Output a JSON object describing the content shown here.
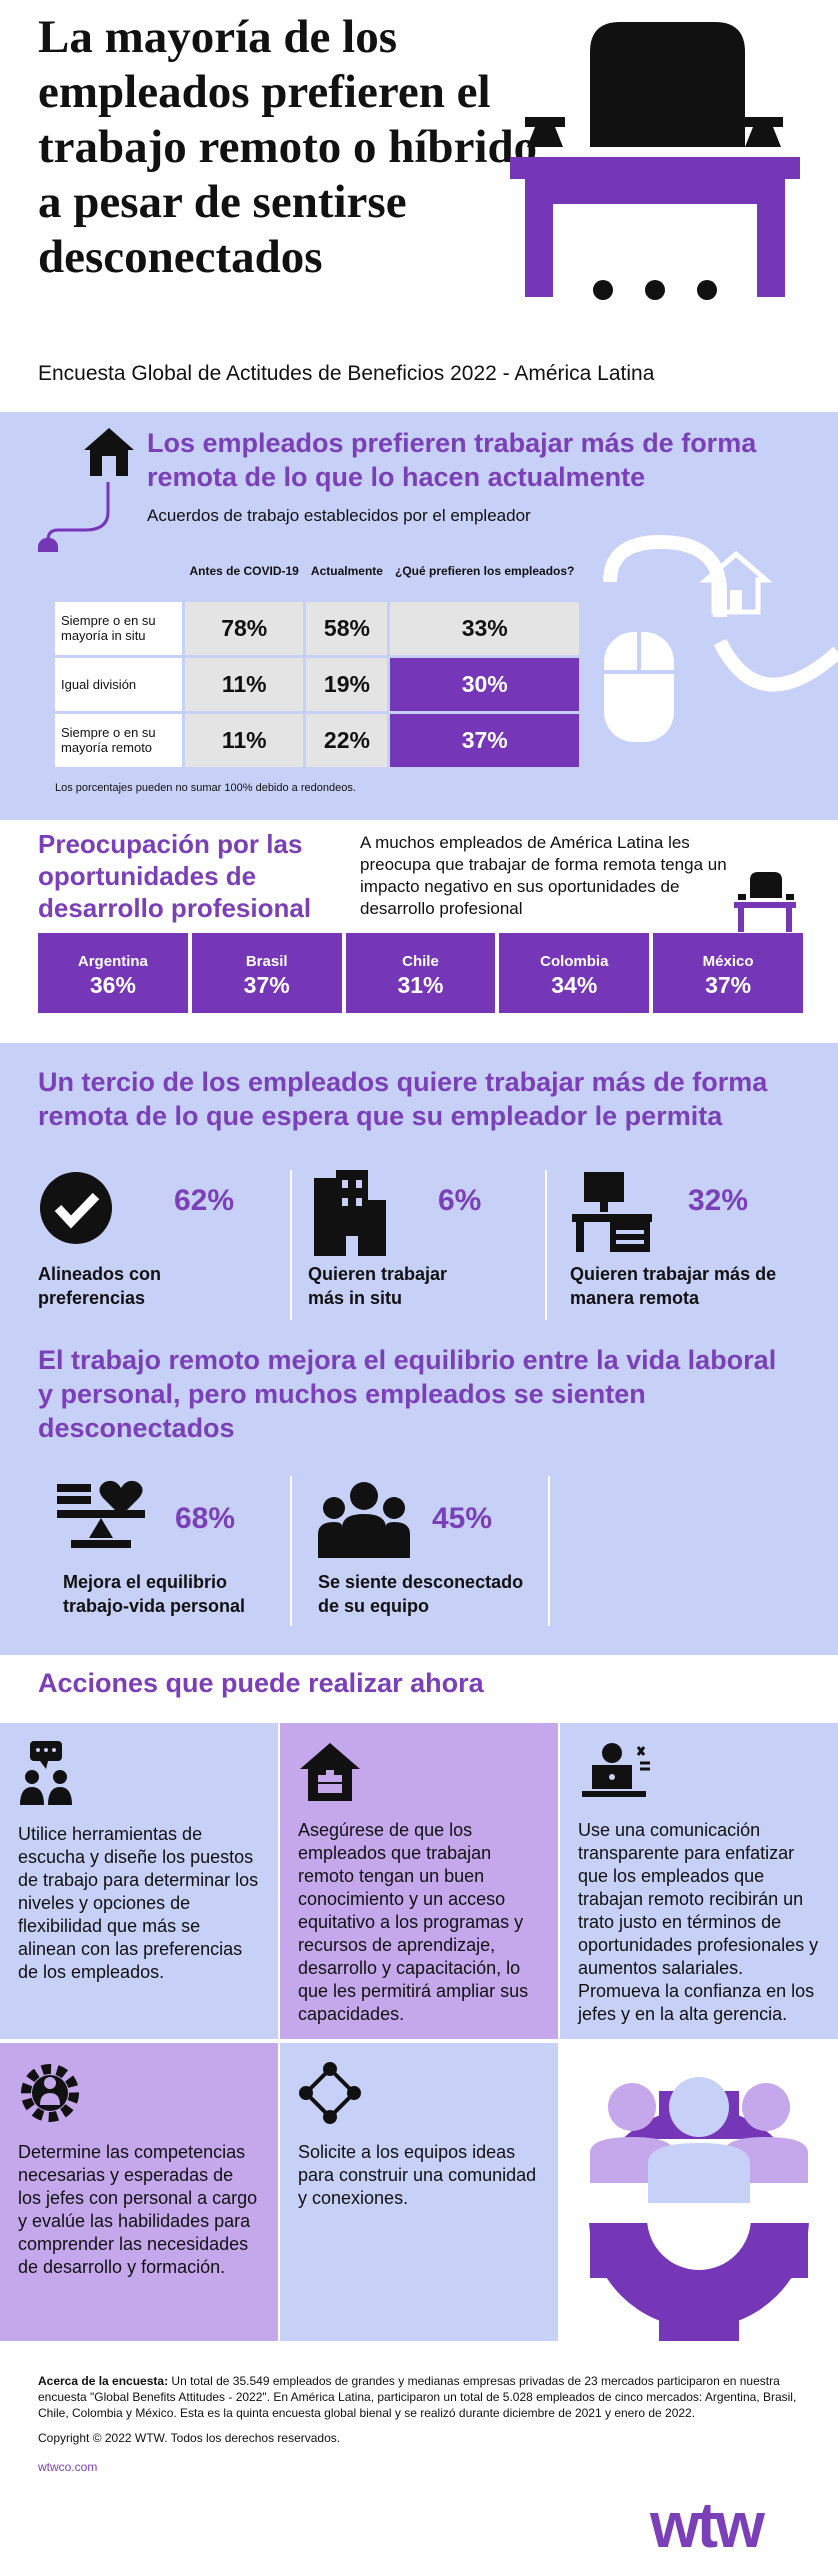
{
  "header": {
    "title": "La mayoría de los empleados prefieren el trabajo remoto o híbrido a pesar de sentirse desconectados",
    "subtitle": "Encuesta Global de Actitudes de Beneficios 2022 - América Latina"
  },
  "section1": {
    "title": "Los empleados prefieren trabajar más de forma remota de  lo que lo hacen actualmente",
    "subtitle": "Acuerdos de trabajo establecidos por el empleador",
    "columns": [
      "Antes de COVID-19",
      "Actualmente",
      "¿Qué prefieren los empleados?"
    ],
    "rows": [
      {
        "label": "Siempre o en su mayoría in situ",
        "values": [
          "78%",
          "58%",
          "33%"
        ]
      },
      {
        "label": "Igual división",
        "values": [
          "11%",
          "19%",
          "30%"
        ]
      },
      {
        "label": "Siempre o en su mayoría remoto",
        "values": [
          "11%",
          "22%",
          "37%"
        ]
      }
    ],
    "note": "Los porcentajes pueden no sumar 100% debido a redondeos."
  },
  "section2": {
    "title": "Preocupación por las oportunidades de desarrollo profesional",
    "text": "A muchos empleados de América Latina les preocupa que trabajar de forma remota tenga un impacto negativo en sus oportunidades de desarrollo profesional",
    "countries": [
      {
        "name": "Argentina",
        "value": "36%"
      },
      {
        "name": "Brasil",
        "value": "37%"
      },
      {
        "name": "Chile",
        "value": "31%"
      },
      {
        "name": "Colombia",
        "value": "34%"
      },
      {
        "name": "México",
        "value": "37%"
      }
    ]
  },
  "section3": {
    "title": "Un tercio de los empleados quiere trabajar más de forma remota de lo que espera que su empleador le permita",
    "stats": [
      {
        "value": "62%",
        "label": "Alineados con preferencias"
      },
      {
        "value": "6%",
        "label": "Quieren trabajar más in situ"
      },
      {
        "value": "32%",
        "label": "Quieren trabajar más de manera remota"
      }
    ]
  },
  "section4": {
    "title": "El trabajo remoto mejora el equilibrio entre la vida laboral y personal, pero muchos empleados se sienten desconectados",
    "stats": [
      {
        "value": "68%",
        "label": "Mejora el  equilibrio trabajo-vida personal"
      },
      {
        "value": "45%",
        "label": "Se siente desconectado de su equipo"
      }
    ]
  },
  "actions": {
    "title": "Acciones que puede realizar ahora",
    "cards": [
      {
        "text": "Utilice herramientas de escucha y diseñe los puestos de trabajo para determinar los niveles y opciones de flexibilidad que más se alinean con las preferencias de los empleados."
      },
      {
        "text": "Asegúrese de que los empleados que trabajan remoto tengan un buen conocimiento y un acceso equitativo a los programas y recursos de aprendizaje, desarrollo y capacitación, lo que les permitirá ampliar sus capacidades."
      },
      {
        "text": "Use una comunicación transparente para enfatizar que los empleados que trabajan remoto recibirán un trato justo en términos de oportunidades profesionales y aumentos salariales. Promueva la confianza en los jefes y en la alta gerencia."
      },
      {
        "text": "Determine las competencias necesarias y esperadas de los jefes con personal a cargo y evalúe las habilidades para comprender las necesidades de desarrollo y formación."
      },
      {
        "text": "Solicite a los equipos ideas para construir una comunidad y conexiones."
      }
    ]
  },
  "footer": {
    "about_label": "Acerca de la encuesta:",
    "about_text": " Un total de 35.549 empleados de grandes y medianas empresas privadas de 23 mercados participaron en nuestra encuesta \"Global Benefits Attitudes - 2022\".  En América Latina, participaron un total de 5.028 empleados de cinco mercados: Argentina, Brasil, Chile, Colombia y México. Esta es la quinta encuesta global bienal y se realizó durante diciembre de 2021 y enero de 2022.",
    "copyright": "Copyright © 2022 WTW. Todos los derechos reservados.",
    "link": "wtwco.com",
    "logo": "wtw"
  },
  "colors": {
    "purple": "#7536b8",
    "lilac": "#c5a8ec",
    "blue": "#c7d0f7"
  }
}
